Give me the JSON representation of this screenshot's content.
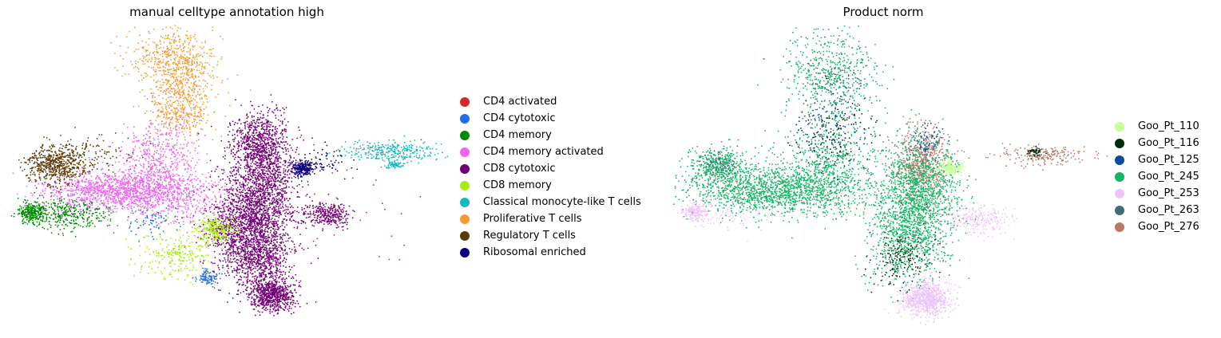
{
  "chart_data": [
    {
      "type": "scatter",
      "title": "manual celltype annotation high",
      "xlabel": "",
      "ylabel": "",
      "grid": false,
      "axes_visible": false,
      "legend_position": "right",
      "series": [
        {
          "name": "CD4 activated",
          "color": "#d62728"
        },
        {
          "name": "CD4 cytotoxic",
          "color": "#1f6ee8"
        },
        {
          "name": "CD4 memory",
          "color": "#008a00"
        },
        {
          "name": "CD4 memory activated",
          "color": "#f062f0"
        },
        {
          "name": "CD8 cytotoxic",
          "color": "#730075"
        },
        {
          "name": "CD8 memory",
          "color": "#a8eb0e"
        },
        {
          "name": "Classical monocyte-like T cells",
          "color": "#12b8c0"
        },
        {
          "name": "Proliferative T cells",
          "color": "#f59a32"
        },
        {
          "name": "Regulatory T cells",
          "color": "#5c3a06"
        },
        {
          "name": "Ribosomal enriched",
          "color": "#0b0082"
        }
      ]
    },
    {
      "type": "scatter",
      "title": "Product norm",
      "xlabel": "",
      "ylabel": "",
      "grid": false,
      "axes_visible": false,
      "legend_position": "right",
      "series": [
        {
          "name": "Goo_Pt_110",
          "color": "#c4ff9a"
        },
        {
          "name": "Goo_Pt_116",
          "color": "#002c0e"
        },
        {
          "name": "Goo_Pt_125",
          "color": "#0b4c9e"
        },
        {
          "name": "Goo_Pt_245",
          "color": "#14b464"
        },
        {
          "name": "Goo_Pt_253",
          "color": "#ecc6f8"
        },
        {
          "name": "Goo_Pt_263",
          "color": "#3c6e74"
        },
        {
          "name": "Goo_Pt_276",
          "color": "#b87a68"
        }
      ]
    }
  ]
}
